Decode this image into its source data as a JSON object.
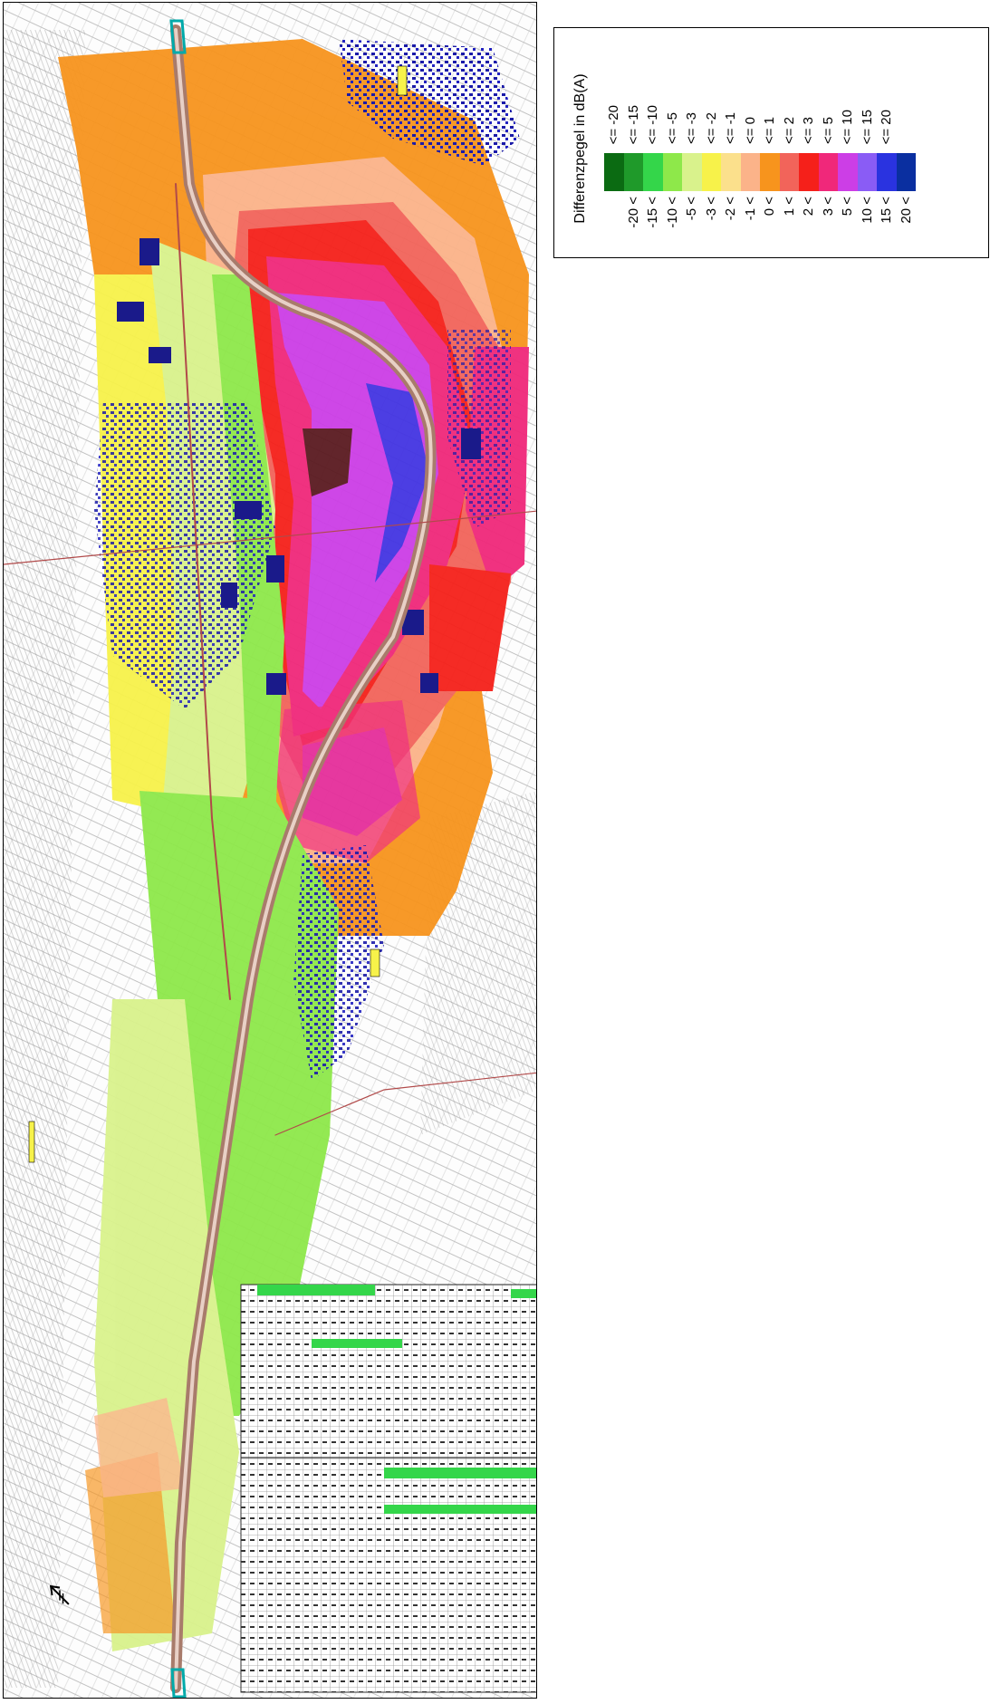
{
  "legend": {
    "title": "Differenzpegel in dB(A)",
    "classes": [
      {
        "lower": "",
        "upper": "<= -20",
        "color": "#0b6b12"
      },
      {
        "lower": "-20 <",
        "upper": "<= -15",
        "color": "#1f9a2a"
      },
      {
        "lower": "-15 <",
        "upper": "<= -10",
        "color": "#34d64a"
      },
      {
        "lower": "-10 <",
        "upper": "<= -5",
        "color": "#8ee84a"
      },
      {
        "lower": "-5 <",
        "upper": "<= -3",
        "color": "#d9f28c"
      },
      {
        "lower": "-3 <",
        "upper": "<= -2",
        "color": "#f7f24a"
      },
      {
        "lower": "-2 <",
        "upper": "<= -1",
        "color": "#fbe08c"
      },
      {
        "lower": "-1 <",
        "upper": "<= 0",
        "color": "#fbb389"
      },
      {
        "lower": "0 <",
        "upper": "<= 1",
        "color": "#f7941d"
      },
      {
        "lower": "1 <",
        "upper": "<= 2",
        "color": "#f2645a"
      },
      {
        "lower": "2 <",
        "upper": "<= 3",
        "color": "#f5201a"
      },
      {
        "lower": "3 <",
        "upper": "<= 5",
        "color": "#f0287a"
      },
      {
        "lower": "5 <",
        "upper": "<= 10",
        "color": "#cc3ee6"
      },
      {
        "lower": "10 <",
        "upper": "<= 15",
        "color": "#8a5cf5"
      },
      {
        "lower": "15 <",
        "upper": "<= 20",
        "color": "#2a33e0"
      },
      {
        "lower": "20 <",
        "upper": "",
        "color": "#0a2fa0"
      }
    ]
  },
  "map": {
    "colors": {
      "orange": "#f7941d",
      "red": "#f5201a",
      "pink": "#f0287a",
      "violet": "#cc3ee6",
      "blue": "#2a33e0",
      "green": "#8ee84a",
      "light_green": "#d9f28c",
      "yellow": "#f7f24a",
      "salmon": "#fbb389",
      "rail": "#a87b6b",
      "building": "#1a1aa8"
    },
    "icons": [
      "north-arrow-icon"
    ]
  }
}
